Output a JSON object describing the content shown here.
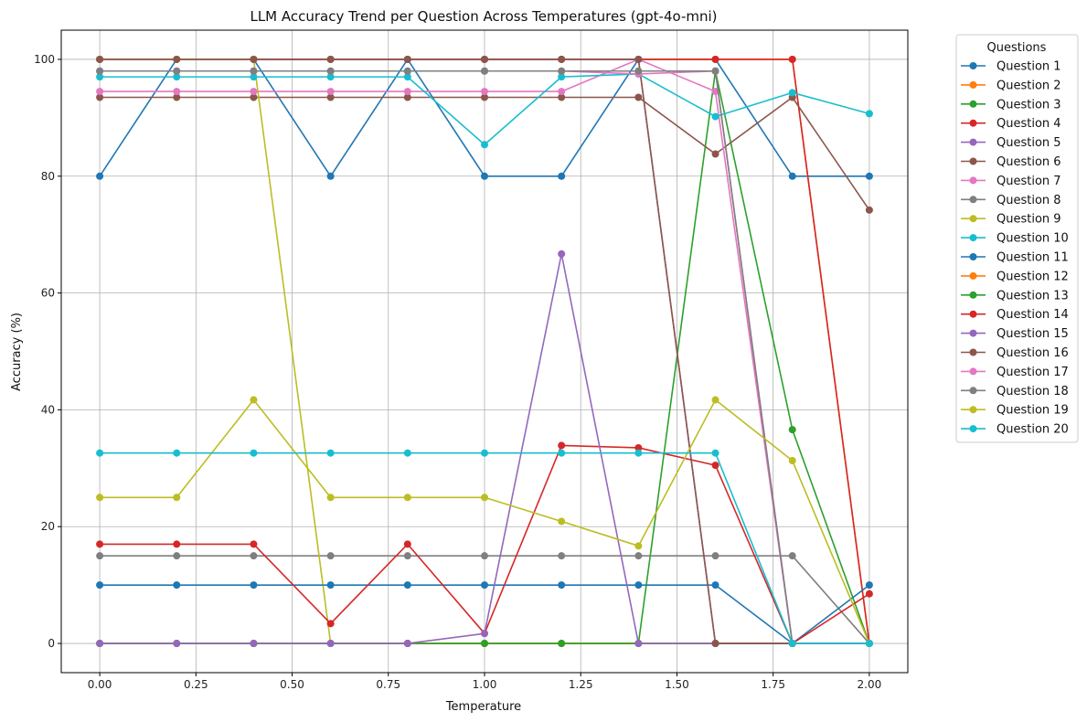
{
  "chart_data": {
    "type": "line",
    "title": "LLM Accuracy Trend per Question Across Temperatures (gpt-4o-mni)",
    "xlabel": "Temperature",
    "ylabel": "Accuracy (%)",
    "xlim": [
      -0.1,
      2.1
    ],
    "ylim": [
      -5,
      105
    ],
    "xticks": [
      "0.00",
      "0.25",
      "0.50",
      "0.75",
      "1.00",
      "1.25",
      "1.50",
      "1.75",
      "2.00"
    ],
    "yticks": [
      "0",
      "20",
      "40",
      "60",
      "80",
      "100"
    ],
    "grid": true,
    "legend_title": "Questions",
    "legend_position": "outside-right",
    "x": [
      0.0,
      0.2,
      0.4,
      0.6,
      0.8,
      1.0,
      1.2,
      1.4,
      1.6,
      1.8,
      2.0
    ],
    "series": [
      {
        "name": "Question 1",
        "color": "#1f77b4",
        "values": [
          80,
          100,
          100,
          80,
          100,
          80,
          80,
          100,
          100,
          80,
          80
        ]
      },
      {
        "name": "Question 2",
        "color": "#ff7f0e",
        "values": [
          100,
          100,
          100,
          100,
          100,
          100,
          100,
          100,
          100,
          100,
          0
        ]
      },
      {
        "name": "Question 3",
        "color": "#2ca02c",
        "values": [
          0,
          0,
          0,
          0,
          0,
          0,
          0,
          0,
          98,
          36.6,
          0
        ]
      },
      {
        "name": "Question 4",
        "color": "#d62728",
        "values": [
          100,
          100,
          100,
          100,
          100,
          100,
          100,
          100,
          100,
          100,
          0
        ]
      },
      {
        "name": "Question 5",
        "color": "#9467bd",
        "values": [
          100,
          100,
          100,
          100,
          100,
          100,
          100,
          100,
          0,
          0,
          0
        ]
      },
      {
        "name": "Question 6",
        "color": "#8c564b",
        "values": [
          93.5,
          93.5,
          93.5,
          93.5,
          93.5,
          93.5,
          93.5,
          93.5,
          83.8,
          93.5,
          74.2
        ]
      },
      {
        "name": "Question 7",
        "color": "#e377c2",
        "values": [
          94.5,
          94.5,
          94.5,
          94.5,
          94.5,
          94.5,
          94.5,
          100,
          94.5,
          0,
          0
        ]
      },
      {
        "name": "Question 8",
        "color": "#7f7f7f",
        "values": [
          15,
          15,
          15,
          15,
          15,
          15,
          15,
          15,
          15,
          15,
          0
        ]
      },
      {
        "name": "Question 9",
        "color": "#bcbd22",
        "values": [
          100,
          100,
          100,
          0,
          0,
          0,
          0,
          0,
          0,
          0,
          0
        ]
      },
      {
        "name": "Question 10",
        "color": "#17becf",
        "values": [
          97,
          97,
          97,
          97,
          97,
          85.4,
          97,
          97.5,
          90.2,
          94.3,
          90.7
        ]
      },
      {
        "name": "Question 11",
        "color": "#1f77b4",
        "values": [
          10,
          10,
          10,
          10,
          10,
          10,
          10,
          10,
          10,
          0,
          10
        ]
      },
      {
        "name": "Question 12",
        "color": "#ff7f0e",
        "values": [
          0,
          0,
          0,
          0,
          0,
          0,
          0,
          0,
          0,
          0,
          0
        ]
      },
      {
        "name": "Question 13",
        "color": "#2ca02c",
        "values": [
          0,
          0,
          0,
          0,
          0,
          0,
          0,
          0,
          0,
          0,
          0
        ]
      },
      {
        "name": "Question 14",
        "color": "#d62728",
        "values": [
          17,
          17,
          17,
          3.4,
          17,
          1.7,
          33.9,
          33.5,
          30.5,
          0,
          8.5
        ]
      },
      {
        "name": "Question 15",
        "color": "#9467bd",
        "values": [
          0,
          0,
          0,
          0,
          0,
          1.7,
          66.7,
          0,
          0,
          0,
          0
        ]
      },
      {
        "name": "Question 16",
        "color": "#8c564b",
        "values": [
          100,
          100,
          100,
          100,
          100,
          100,
          100,
          100,
          0,
          0,
          0
        ]
      },
      {
        "name": "Question 17",
        "color": "#e377c2",
        "values": [
          98,
          98,
          98,
          98,
          98,
          98,
          98,
          97.5,
          98,
          0,
          0
        ]
      },
      {
        "name": "Question 18",
        "color": "#7f7f7f",
        "values": [
          98,
          98,
          98,
          98,
          98,
          98,
          98,
          98,
          98,
          0,
          0
        ]
      },
      {
        "name": "Question 19",
        "color": "#bcbd22",
        "values": [
          25,
          25,
          41.7,
          25,
          25,
          25,
          20.9,
          16.7,
          41.7,
          31.3,
          0
        ]
      },
      {
        "name": "Question 20",
        "color": "#17becf",
        "values": [
          32.6,
          32.6,
          32.6,
          32.6,
          32.6,
          32.6,
          32.6,
          32.6,
          32.6,
          0,
          0
        ]
      }
    ]
  }
}
